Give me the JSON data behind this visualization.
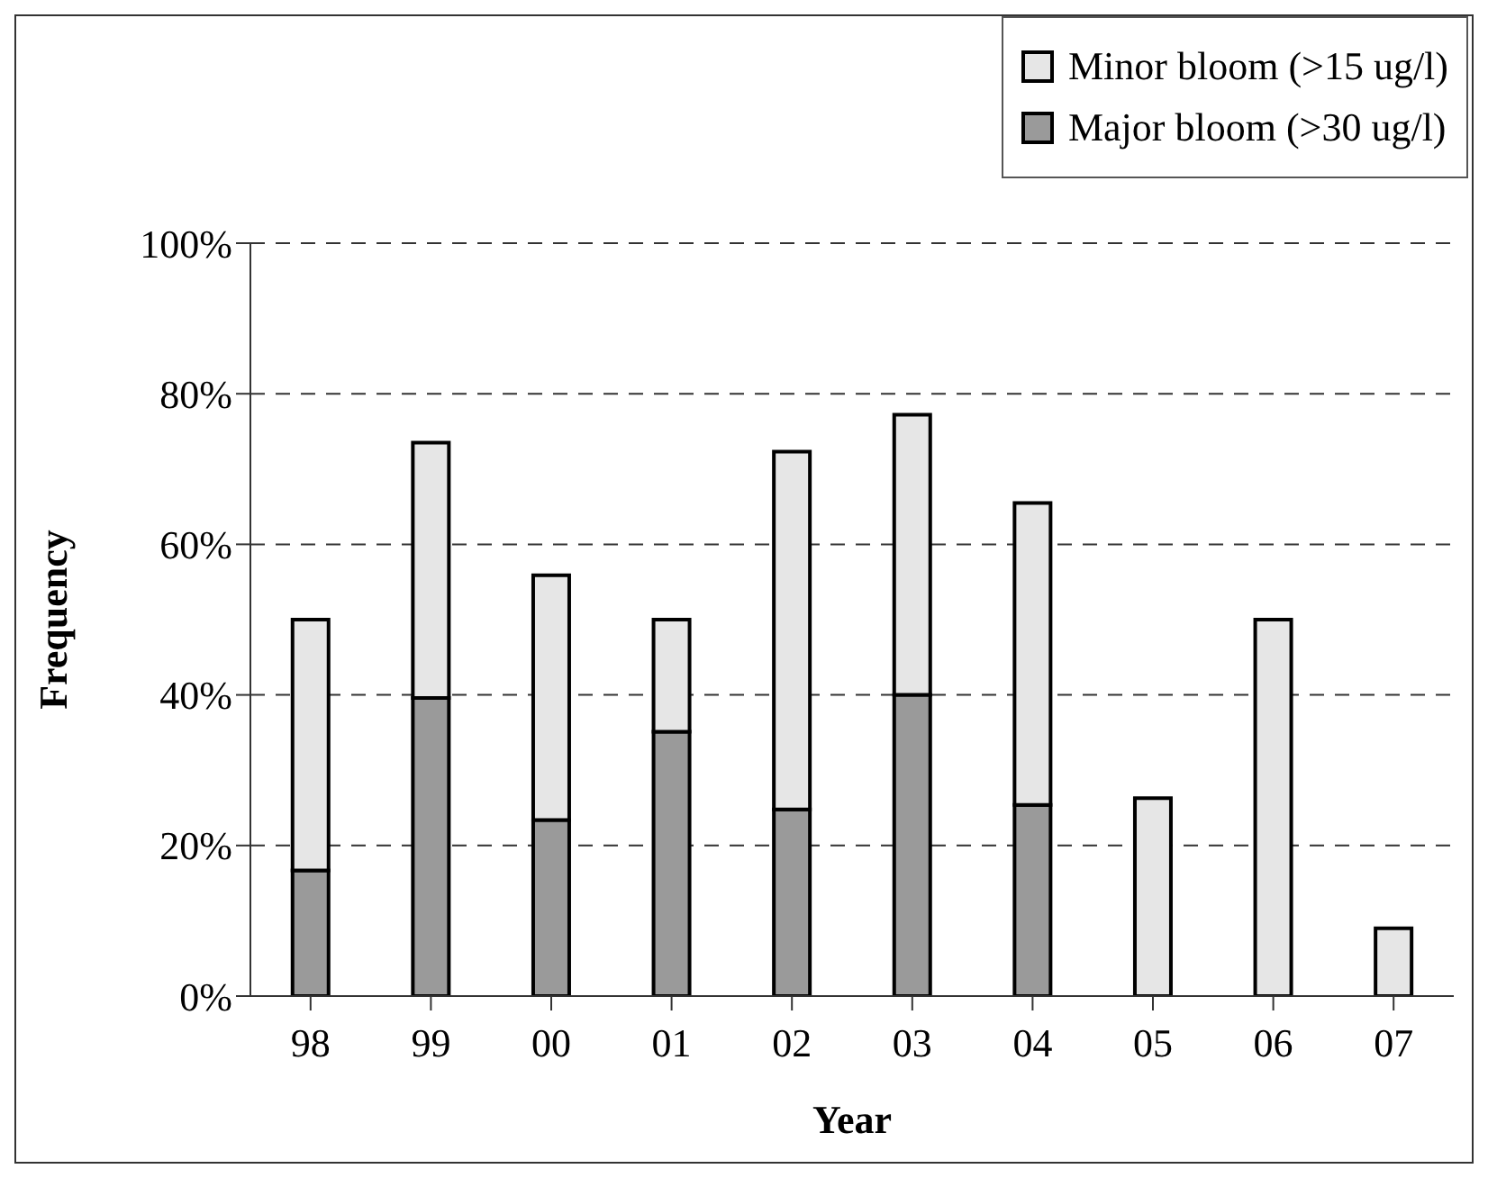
{
  "chart_data": {
    "type": "bar",
    "stacked": true,
    "xlabel": "Year",
    "ylabel": "Frequency",
    "categories": [
      "98",
      "99",
      "00",
      "01",
      "02",
      "03",
      "04",
      "05",
      "06",
      "07"
    ],
    "series": [
      {
        "name": "Major bloom (>30 ug/l)",
        "color": "#9a9a9a",
        "values": [
          16.7,
          39.6,
          23.4,
          35.1,
          24.8,
          40,
          25.4,
          null,
          null,
          null
        ]
      },
      {
        "name": "Minor bloom (>15 ug/l)",
        "color": "#e6e6e6",
        "values": [
          33.3,
          33.9,
          32.5,
          14.9,
          47.5,
          37.2,
          40.1,
          26.3,
          50,
          9
        ]
      }
    ],
    "ylim": [
      0,
      100
    ],
    "yticks": [
      {
        "value": 0,
        "label": "0%"
      },
      {
        "value": 20,
        "label": "20%"
      },
      {
        "value": 40,
        "label": "40%"
      },
      {
        "value": 60,
        "label": "60%"
      },
      {
        "value": 80,
        "label": "80%"
      },
      {
        "value": 100,
        "label": "100%"
      }
    ],
    "grid": "y",
    "legend": "top right"
  }
}
